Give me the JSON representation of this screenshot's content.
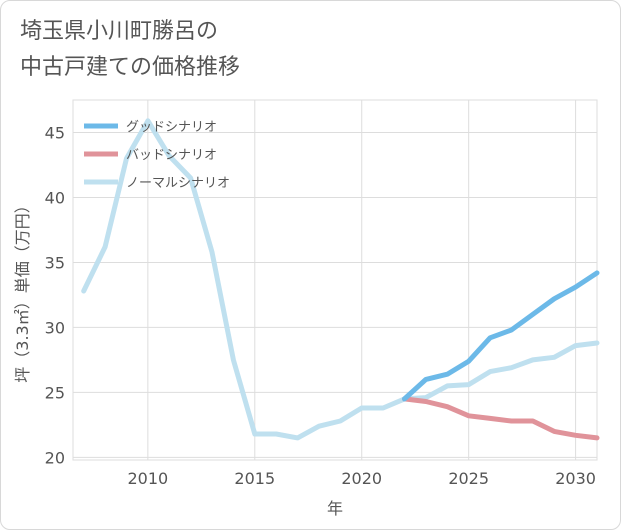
{
  "title_lines": [
    "埼玉県小川町勝呂の",
    "中古戸建ての価格推移"
  ],
  "chart_data": {
    "type": "line",
    "xlabel": "年",
    "ylabel": "坪（3.3㎡）単価（万円）",
    "xlim": [
      2006.5,
      2031
    ],
    "ylim": [
      19.8,
      47.5
    ],
    "xticks": [
      2010,
      2015,
      2020,
      2025,
      2030
    ],
    "yticks": [
      20,
      25,
      30,
      35,
      40,
      45
    ],
    "grid": true,
    "legend_position": "top-left",
    "series": [
      {
        "name": "グッドシナリオ",
        "color": "#6cb9e8",
        "x": [
          2022,
          2023,
          2024,
          2025,
          2026,
          2027,
          2028,
          2029,
          2030,
          2031
        ],
        "y": [
          24.5,
          26.0,
          26.4,
          27.4,
          29.2,
          29.8,
          31.0,
          32.2,
          33.1,
          34.2
        ]
      },
      {
        "name": "バッドシナリオ",
        "color": "#e0939a",
        "x": [
          2022,
          2023,
          2024,
          2025,
          2026,
          2027,
          2028,
          2029,
          2030,
          2031
        ],
        "y": [
          24.5,
          24.3,
          23.9,
          23.2,
          23.0,
          22.8,
          22.8,
          22.0,
          21.7,
          21.5
        ]
      },
      {
        "name": "ノーマルシナリオ",
        "color": "#bfe0ef",
        "x": [
          2007,
          2008,
          2009,
          2010,
          2011,
          2012,
          2013,
          2014,
          2015,
          2016,
          2017,
          2018,
          2019,
          2020,
          2021,
          2022,
          2023,
          2024,
          2025,
          2026,
          2027,
          2028,
          2029,
          2030,
          2031
        ],
        "y": [
          32.8,
          36.2,
          43.0,
          45.9,
          43.2,
          41.5,
          35.8,
          27.5,
          21.8,
          21.8,
          21.5,
          22.4,
          22.8,
          23.8,
          23.8,
          24.5,
          24.6,
          25.5,
          25.6,
          26.6,
          26.9,
          27.5,
          27.7,
          28.6,
          28.8
        ]
      }
    ]
  }
}
